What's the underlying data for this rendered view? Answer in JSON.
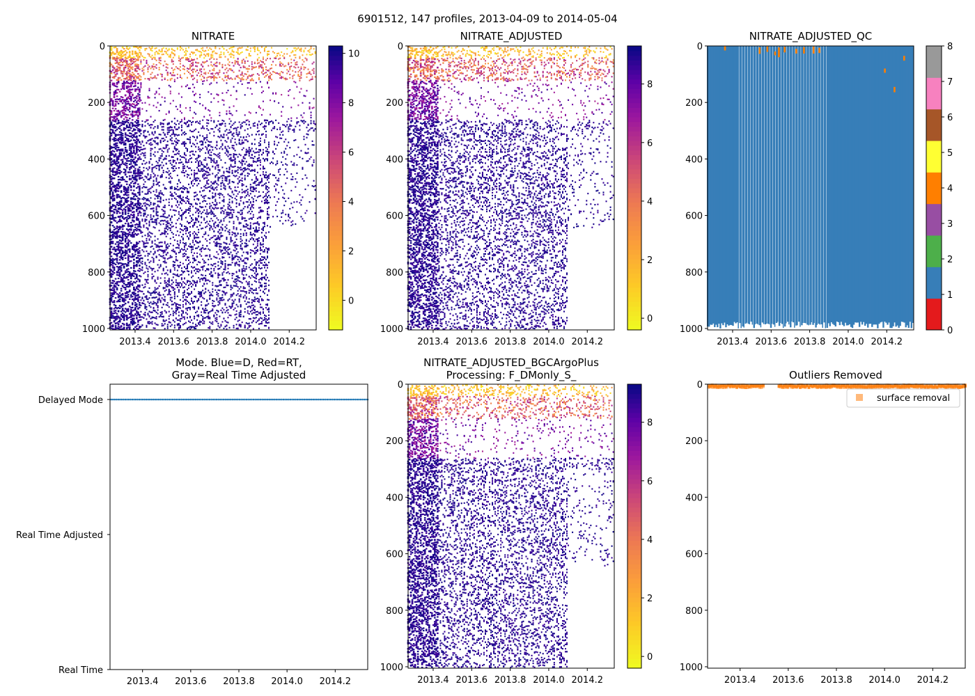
{
  "figure": {
    "suptitle": "6901512, 147 profiles, 2013-04-09 to 2014-05-04"
  },
  "chart_data": [
    {
      "id": "nitrate",
      "type": "heatmap",
      "title": "NITRATE",
      "xlim": [
        2013.27,
        2014.34
      ],
      "ylim": [
        1005,
        0
      ],
      "xticks": [
        "2013.4",
        "2013.6",
        "2013.8",
        "2014.0",
        "2014.2"
      ],
      "yticks": [
        "0",
        "200",
        "400",
        "600",
        "800",
        "1000"
      ],
      "colormap": "plasma_r",
      "colorbar": {
        "range": [
          -1.2,
          10.3
        ],
        "ticks": [
          "0",
          "2",
          "4",
          "6",
          "8",
          "10"
        ]
      }
    },
    {
      "id": "nitrate_adjusted",
      "type": "heatmap",
      "title": "NITRATE_ADJUSTED",
      "xlim": [
        2013.27,
        2014.34
      ],
      "ylim": [
        1005,
        0
      ],
      "xticks": [
        "2013.4",
        "2013.6",
        "2013.8",
        "2014.0",
        "2014.2"
      ],
      "yticks": [
        "0",
        "200",
        "400",
        "600",
        "800",
        "1000"
      ],
      "colormap": "plasma_r",
      "colorbar": {
        "range": [
          -0.4,
          9.3
        ],
        "ticks": [
          "0",
          "2",
          "4",
          "6",
          "8"
        ]
      }
    },
    {
      "id": "nitrate_adjusted_qc",
      "type": "heatmap",
      "title": "NITRATE_ADJUSTED_QC",
      "xlim": [
        2013.27,
        2014.34
      ],
      "ylim": [
        1005,
        0
      ],
      "xticks": [
        "2013.4",
        "2013.6",
        "2013.8",
        "2014.0",
        "2014.2"
      ],
      "yticks": [
        "0",
        "200",
        "400",
        "600",
        "800",
        "1000"
      ],
      "dominant_flag": 1,
      "secondary_flag": 4,
      "colorbar": {
        "range": [
          0,
          8
        ],
        "ticks": [
          "0",
          "1",
          "2",
          "3",
          "4",
          "5",
          "6",
          "7",
          "8"
        ],
        "bands": [
          {
            "flag": 0,
            "color": "#e41a1c"
          },
          {
            "flag": 1,
            "color": "#377eb8"
          },
          {
            "flag": 2,
            "color": "#4daf4a"
          },
          {
            "flag": 3,
            "color": "#984ea3"
          },
          {
            "flag": 4,
            "color": "#ff7f00"
          },
          {
            "flag": 5,
            "color": "#ffff33"
          },
          {
            "flag": 6,
            "color": "#a65628"
          },
          {
            "flag": 7,
            "color": "#f781bf"
          },
          {
            "flag": 8,
            "color": "#999999"
          }
        ]
      }
    },
    {
      "id": "mode",
      "type": "scatter",
      "title": "Mode. Blue=D, Red=RT,",
      "title_line2": "Gray=Real Time Adjusted",
      "xlim": [
        2013.265,
        2014.335
      ],
      "xticks": [
        "2013.4",
        "2013.6",
        "2013.8",
        "2014.0",
        "2014.2"
      ],
      "ycategories": [
        "Delayed Mode",
        "Real Time Adjusted",
        "Real Time"
      ],
      "series": [
        {
          "name": "D",
          "color": "#1f77b4",
          "category": "Delayed Mode",
          "profiles": 147
        }
      ]
    },
    {
      "id": "nitrate_bgcargoplus",
      "type": "heatmap",
      "title": "NITRATE_ADJUSTED_BGCArgoPlus",
      "title_line2": "Processing: F_DMonly_S_",
      "xlim": [
        2013.27,
        2014.34
      ],
      "ylim": [
        1005,
        0
      ],
      "xticks": [
        "2013.4",
        "2013.6",
        "2013.8",
        "2014.0",
        "2014.2"
      ],
      "yticks": [
        "0",
        "200",
        "400",
        "600",
        "800",
        "1000"
      ],
      "colormap": "plasma_r",
      "colorbar": {
        "range": [
          -0.4,
          9.3
        ],
        "ticks": [
          "0",
          "2",
          "4",
          "6",
          "8"
        ]
      }
    },
    {
      "id": "outliers",
      "type": "scatter",
      "title": "Outliers Removed",
      "xlim": [
        2013.265,
        2014.335
      ],
      "ylim": [
        1005,
        0
      ],
      "xticks": [
        "2013.4",
        "2013.6",
        "2013.8",
        "2014.0",
        "2014.2"
      ],
      "yticks": [
        "0",
        "200",
        "400",
        "600",
        "800",
        "1000"
      ],
      "series": [
        {
          "name": "surface removal",
          "color": "#ff7f0e",
          "alpha": 0.55,
          "depth_range": [
            0,
            10
          ]
        }
      ],
      "legend": {
        "label": "surface removal",
        "position": "top-right"
      }
    }
  ]
}
